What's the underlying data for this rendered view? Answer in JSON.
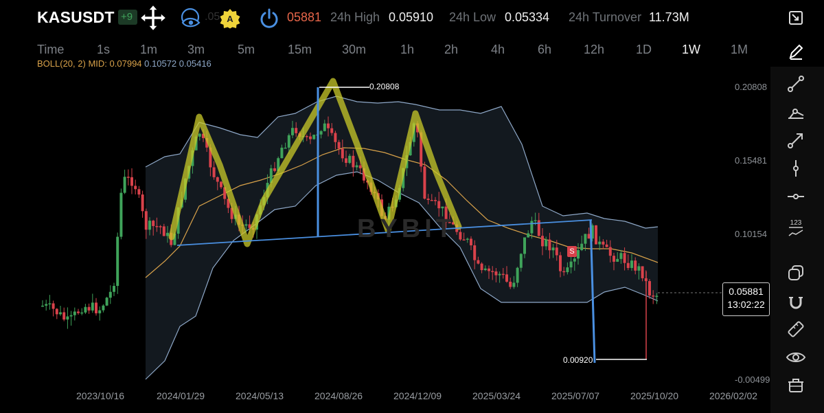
{
  "header": {
    "symbol": "KASUSDT",
    "change_partial": "+9",
    "last_price_partial": "05881",
    "stats": [
      {
        "label": "24h High",
        "value": "0.05910"
      },
      {
        "label": "24h Low",
        "value": "0.05334"
      },
      {
        "label": "24h Turnover",
        "value": "11.73M"
      }
    ],
    "a_badge": "A"
  },
  "timeframes": [
    "Time",
    "1s",
    "1m",
    "3m",
    "5m",
    "15m",
    "30m",
    "1h",
    "2h",
    "4h",
    "6h",
    "12h",
    "1D",
    "1W",
    "1M"
  ],
  "active_timeframe": "1W",
  "indicator": {
    "label": "BOLL(20, 2)",
    "mid_label": "MID:",
    "mid": "0.07994",
    "upper": "0.10572",
    "lower": "0.05416"
  },
  "current": {
    "price": "0.05881",
    "countdown": "13:02:22"
  },
  "watermark": "BYBIT",
  "marker": "S",
  "colors": {
    "up": "#3fa35a",
    "down": "#d9424b",
    "highlight": "#c9c92a",
    "trendline": "#4a90e2",
    "mid": "#d9a24a",
    "band": "#8fa9c9"
  },
  "toolbar_icons": [
    "collapse-icon",
    "pencil-icon",
    "trend-line-icon",
    "ray-icon",
    "arrow-line-icon",
    "vertical-line-icon",
    "horizontal-line-icon",
    "price-label-icon",
    "layers-icon",
    "magnet-icon",
    "ruler-icon",
    "eye-icon",
    "trash-icon"
  ],
  "chart_data": {
    "type": "candlestick",
    "pair": "KASUSDT",
    "interval": "1W",
    "x_ticks": [
      "2023/10/16",
      "2024/01/29",
      "2024/05/13",
      "2024/08/26",
      "2024/12/09",
      "2025/03/24",
      "2025/07/07",
      "2025/10/20",
      "2026/02/02"
    ],
    "y_ticks": [
      "0.20808",
      "0.15481",
      "0.10154",
      "-0.00499"
    ],
    "ylim": [
      -0.0075,
      0.2185
    ],
    "annotations": [
      {
        "text": "0.20808",
        "type": "high-marker"
      },
      {
        "text": "0.00920",
        "type": "low-marker"
      }
    ],
    "last_close": 0.05881,
    "boll": {
      "period": 20,
      "mult": 2,
      "mid": 0.07994,
      "upper": 0.10572,
      "lower": 0.05416
    },
    "overlays": [
      "yellow zigzag M-pattern",
      "blue neckline",
      "blue vertical projections"
    ]
  }
}
